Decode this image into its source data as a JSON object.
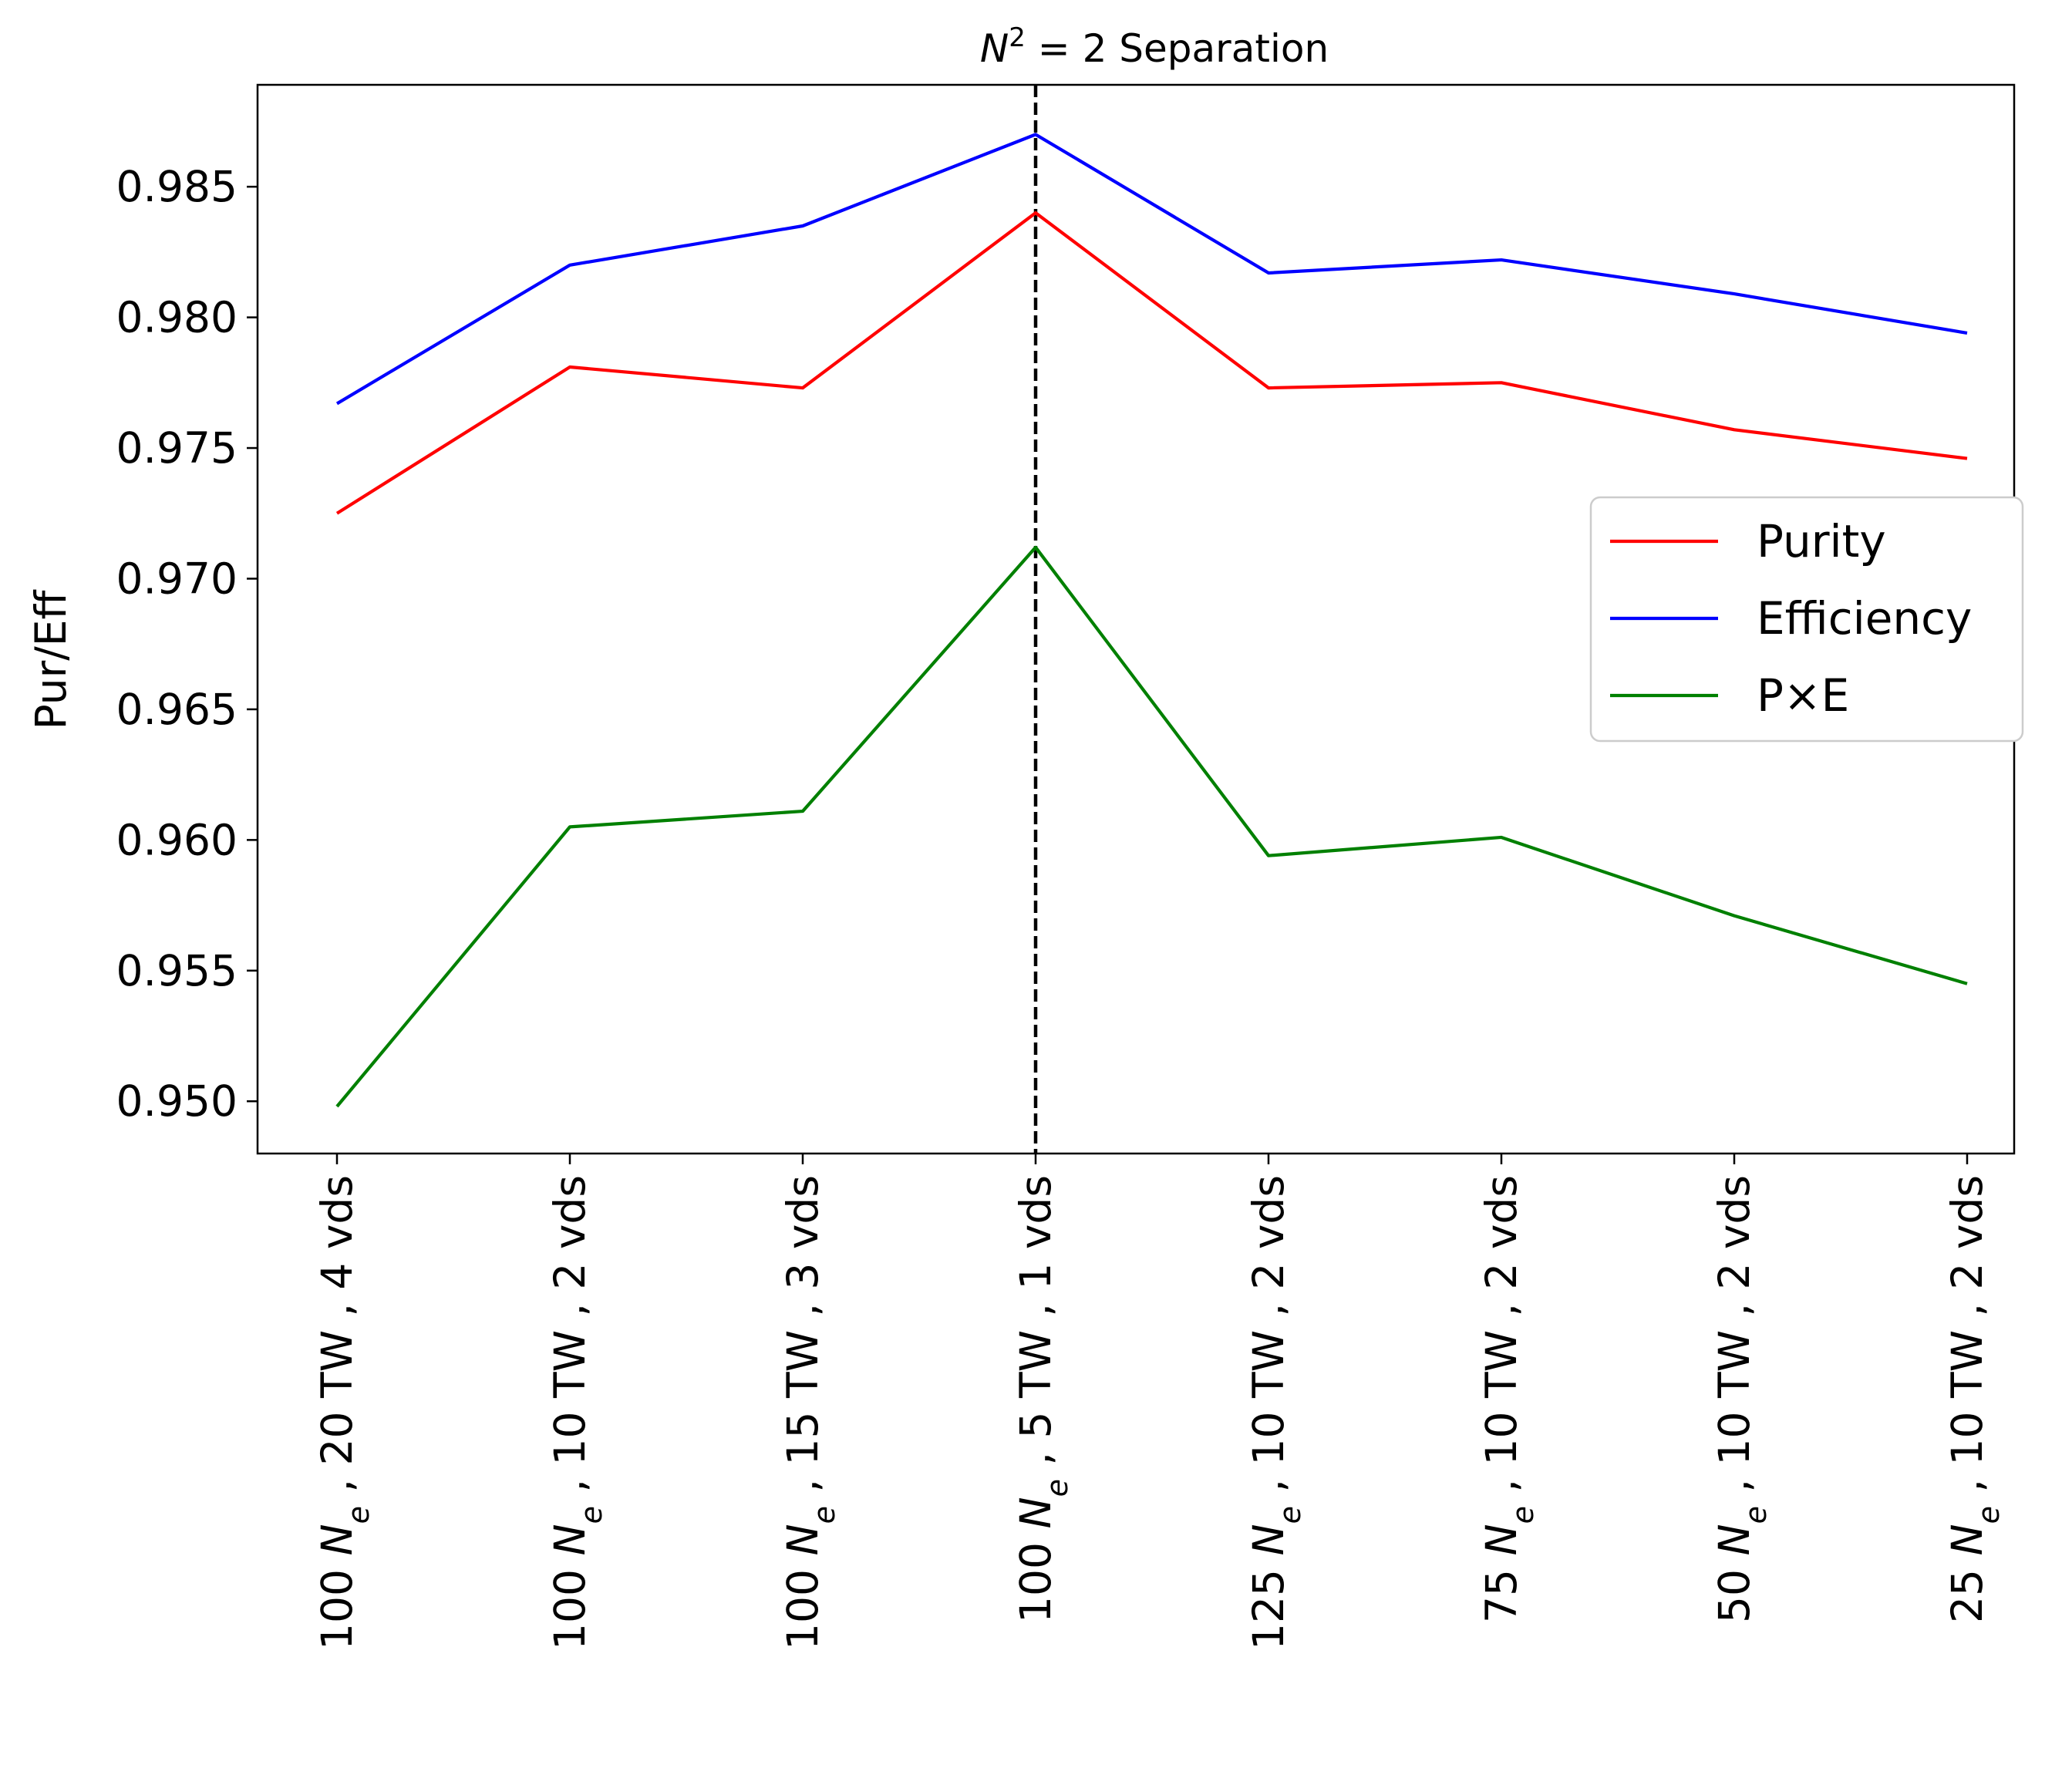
{
  "chart_data": {
    "type": "line",
    "title": "N² = 2 Separation",
    "title_parts": {
      "symbol": "N",
      "power": "2",
      "rest": " = 2 Separation"
    },
    "xlabel": "",
    "ylabel": "Pur/Eff",
    "ylim": [
      0.948,
      0.9889
    ],
    "yticks": [
      0.95,
      0.955,
      0.96,
      0.965,
      0.97,
      0.975,
      0.98,
      0.985
    ],
    "ytick_labels": [
      "0.950",
      "0.955",
      "0.960",
      "0.965",
      "0.970",
      "0.975",
      "0.980",
      "0.985"
    ],
    "categories": [
      "100 Ne , 20 TW , 4 vds",
      "100 Ne , 10 TW , 2 vds",
      "100 Ne , 15 TW , 3 vds",
      "100 Ne , 5 TW , 1 vds",
      "125 Ne , 10 TW , 2 vds",
      "75 Ne , 10 TW , 2 vds",
      "50 Ne , 10 TW , 2 vds",
      "25 Ne , 10 TW , 2 vds"
    ],
    "category_parts": [
      {
        "num": "100 ",
        "rest": " , 20 TW , 4 vds"
      },
      {
        "num": "100 ",
        "rest": " , 10 TW , 2 vds"
      },
      {
        "num": "100 ",
        "rest": " , 15 TW , 3 vds"
      },
      {
        "num": "100 ",
        "rest": " , 5 TW , 1 vds"
      },
      {
        "num": "125 ",
        "rest": " , 10 TW , 2 vds"
      },
      {
        "num": "75 ",
        "rest": " , 10 TW , 2 vds"
      },
      {
        "num": "50 ",
        "rest": " , 10 TW , 2 vds"
      },
      {
        "num": "25 ",
        "rest": " , 10 TW , 2 vds"
      }
    ],
    "series": [
      {
        "name": "Purity",
        "color": "#ff0000",
        "values": [
          0.9725,
          0.9781,
          0.9773,
          0.984,
          0.9773,
          0.9775,
          0.9757,
          0.9746
        ]
      },
      {
        "name": "Efficiency",
        "color": "#0000ff",
        "values": [
          0.9767,
          0.982,
          0.9835,
          0.987,
          0.9817,
          0.9822,
          0.9809,
          0.9794
        ]
      },
      {
        "name": "P×E",
        "color": "#008000",
        "values": [
          0.9498,
          0.9605,
          0.9611,
          0.9712,
          0.9594,
          0.9601,
          0.9571,
          0.9545
        ]
      }
    ],
    "vline": {
      "category_index": 3,
      "style": "dashed",
      "color": "#000000"
    },
    "legend": {
      "placement": "center-right"
    },
    "grid": false
  }
}
